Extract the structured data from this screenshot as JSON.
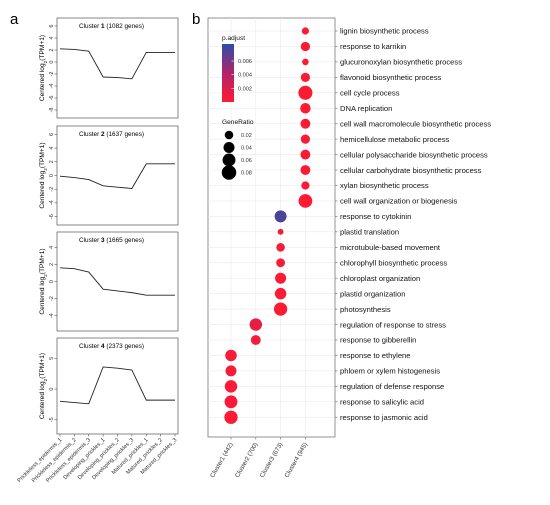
{
  "chart_data": [
    {
      "type": "line",
      "panel": "a",
      "cluster_name": "Cluster",
      "cluster_index": "1",
      "cluster_genes": "(1082 genes)",
      "ylabel": "Centered log2(TPM+1)",
      "ylabel_parts": {
        "pre": "Centered log",
        "sub": "2",
        "post": "(TPM+1)"
      },
      "yticks": [
        6,
        4,
        2,
        0,
        -2,
        -4,
        -6,
        -8
      ],
      "ylim": [
        -8.5,
        6.5
      ],
      "x": [
        "Prickleless_epidermis_1",
        "Prickleless_epidermis_2",
        "Prickleless_epidermis_3",
        "Developing_prickles_1",
        "Developing_prickles_2",
        "Developing_prickles_3",
        "Matured_prickles_1",
        "Matured_prickles_2",
        "Matured_prickles_3"
      ],
      "values": [
        2.2,
        2.1,
        1.8,
        -2.5,
        -2.6,
        -2.8,
        1.6,
        1.6,
        1.6
      ]
    },
    {
      "type": "line",
      "panel": "a",
      "cluster_name": "Cluster",
      "cluster_index": "2",
      "cluster_genes": "(1637 genes)",
      "ylabel": "Centered log2(TPM+1)",
      "ylabel_parts": {
        "pre": "Centered log",
        "sub": "2",
        "post": "(TPM+1)"
      },
      "yticks": [
        6,
        4,
        2,
        0,
        -2,
        -4,
        -6
      ],
      "ylim": [
        -6.5,
        6.5
      ],
      "x": [
        "Prickleless_epidermis_1",
        "Prickleless_epidermis_2",
        "Prickleless_epidermis_3",
        "Developing_prickles_1",
        "Developing_prickles_2",
        "Developing_prickles_3",
        "Matured_prickles_1",
        "Matured_prickles_2",
        "Matured_prickles_3"
      ],
      "values": [
        -0.1,
        -0.3,
        -0.6,
        -1.5,
        -1.7,
        -1.9,
        1.7,
        1.7,
        1.7
      ]
    },
    {
      "type": "line",
      "panel": "a",
      "cluster_name": "Cluster",
      "cluster_index": "3",
      "cluster_genes": "(1665 genes)",
      "ylabel": "Centered log2(TPM+1)",
      "ylabel_parts": {
        "pre": "Centered log",
        "sub": "2",
        "post": "(TPM+1)"
      },
      "yticks": [
        4,
        2,
        0,
        -2,
        -4
      ],
      "ylim": [
        -5.2,
        5.2
      ],
      "x": [
        "Prickleless_epidermis_1",
        "Prickleless_epidermis_2",
        "Prickleless_epidermis_3",
        "Developing_prickles_1",
        "Developing_prickles_2",
        "Developing_prickles_3",
        "Matured_prickles_1",
        "Matured_prickles_2",
        "Matured_prickles_3"
      ],
      "values": [
        1.6,
        1.5,
        1.1,
        -0.9,
        -1.1,
        -1.3,
        -1.6,
        -1.6,
        -1.6
      ]
    },
    {
      "type": "line",
      "panel": "a",
      "cluster_name": "Cluster",
      "cluster_index": "4",
      "cluster_genes": "(2373 genes)",
      "ylabel": "Centered log2(TPM+1)",
      "ylabel_parts": {
        "pre": "Centered log",
        "sub": "2",
        "post": "(TPM+1)"
      },
      "yticks": [
        5,
        0,
        -5
      ],
      "ylim": [
        -6.5,
        7.5
      ],
      "x_ticklabels": [
        "Prickleless_epidermis_1",
        "Prickleless_epidermis_2",
        "Prickleless_epidermis_3",
        "Developing_prickles_1",
        "Developing_prickles_2",
        "Developing_prickles_3",
        "Matured_prickles_1",
        "Matured_prickles_2",
        "Matured_prickles_3"
      ],
      "x": [
        "Prickleless_epidermis_1",
        "Prickleless_epidermis_2",
        "Prickleless_epidermis_3",
        "Developing_prickles_1",
        "Developing_prickles_2",
        "Developing_prickles_3",
        "Matured_prickles_1",
        "Matured_prickles_2",
        "Matured_prickles_3"
      ],
      "values": [
        -2.0,
        -2.2,
        -2.4,
        3.6,
        3.4,
        3.1,
        -1.8,
        -1.8,
        -1.8
      ]
    },
    {
      "type": "scatter",
      "panel": "b",
      "categories": [
        "Cluster1 (442)",
        "Cluster2 (700)",
        "Cluster3 (673)",
        "Cluster4 (945)"
      ],
      "terms": [
        "lignin biosynthetic process",
        "response to karrikin",
        "glucuronoxylan biosynthetic process",
        "flavonoid biosynthetic process",
        "cell cycle process",
        "DNA replication",
        "cell wall macromolecule biosynthetic process",
        "hemicellulose metabolic process",
        "cellular polysaccharide biosynthetic process",
        "cellular carbohydrate biosynthetic process",
        "xylan biosynthetic process",
        "cell wall organization or biogenesis",
        "response to cytokinin",
        "plastid translation",
        "microtubule-based movement",
        "chlorophyll biosynthetic process",
        "chloroplast organization",
        "plastid organization",
        "photosynthesis",
        "regulation of response to stress",
        "response to gibberellin",
        "response to ethylene",
        "phloem or xylem histogenesis",
        "regulation of defense response",
        "response to salicylic acid",
        "response to jasmonic acid"
      ],
      "points": [
        {
          "cluster": 3,
          "term": 0,
          "gene_ratio": 0.012,
          "p_adjust": 0.0001
        },
        {
          "cluster": 3,
          "term": 1,
          "gene_ratio": 0.025,
          "p_adjust": 0.0002
        },
        {
          "cluster": 3,
          "term": 2,
          "gene_ratio": 0.009,
          "p_adjust": 0.0003
        },
        {
          "cluster": 3,
          "term": 3,
          "gene_ratio": 0.025,
          "p_adjust": 0.0002
        },
        {
          "cluster": 3,
          "term": 4,
          "gene_ratio": 0.075,
          "p_adjust": 1e-05
        },
        {
          "cluster": 3,
          "term": 5,
          "gene_ratio": 0.035,
          "p_adjust": 2e-05
        },
        {
          "cluster": 3,
          "term": 6,
          "gene_ratio": 0.03,
          "p_adjust": 0.0002
        },
        {
          "cluster": 3,
          "term": 7,
          "gene_ratio": 0.025,
          "p_adjust": 0.0003
        },
        {
          "cluster": 3,
          "term": 8,
          "gene_ratio": 0.03,
          "p_adjust": 0.0002
        },
        {
          "cluster": 3,
          "term": 9,
          "gene_ratio": 0.03,
          "p_adjust": 0.0002
        },
        {
          "cluster": 3,
          "term": 10,
          "gene_ratio": 0.018,
          "p_adjust": 0.0003
        },
        {
          "cluster": 3,
          "term": 11,
          "gene_ratio": 0.07,
          "p_adjust": 2e-05
        },
        {
          "cluster": 2,
          "term": 12,
          "gene_ratio": 0.05,
          "p_adjust": 0.0075
        },
        {
          "cluster": 2,
          "term": 13,
          "gene_ratio": 0.006,
          "p_adjust": 0.0004
        },
        {
          "cluster": 2,
          "term": 14,
          "gene_ratio": 0.02,
          "p_adjust": 0.0005
        },
        {
          "cluster": 2,
          "term": 15,
          "gene_ratio": 0.022,
          "p_adjust": 0.0002
        },
        {
          "cluster": 2,
          "term": 16,
          "gene_ratio": 0.04,
          "p_adjust": 0.0001
        },
        {
          "cluster": 2,
          "term": 17,
          "gene_ratio": 0.045,
          "p_adjust": 0.0001
        },
        {
          "cluster": 2,
          "term": 18,
          "gene_ratio": 0.065,
          "p_adjust": 1e-05
        },
        {
          "cluster": 1,
          "term": 19,
          "gene_ratio": 0.055,
          "p_adjust": 0.0012
        },
        {
          "cluster": 1,
          "term": 20,
          "gene_ratio": 0.03,
          "p_adjust": 0.0006
        },
        {
          "cluster": 0,
          "term": 21,
          "gene_ratio": 0.045,
          "p_adjust": 0.0003
        },
        {
          "cluster": 0,
          "term": 22,
          "gene_ratio": 0.04,
          "p_adjust": 0.0004
        },
        {
          "cluster": 0,
          "term": 23,
          "gene_ratio": 0.055,
          "p_adjust": 0.0003
        },
        {
          "cluster": 0,
          "term": 24,
          "gene_ratio": 0.06,
          "p_adjust": 0.0002
        },
        {
          "cluster": 0,
          "term": 25,
          "gene_ratio": 0.065,
          "p_adjust": 0.0001
        }
      ],
      "color_legend": {
        "title": "p.adjust",
        "ticks": [
          "0.006",
          "0.004",
          "0.002"
        ],
        "tick_values": [
          0.006,
          0.004,
          0.002
        ],
        "range": [
          0.0,
          0.0085
        ],
        "low_color": "#ff1a33",
        "high_color": "#2c4ea8"
      },
      "size_legend": {
        "title": "GeneRatio",
        "ticks": [
          "0.02",
          "0.04",
          "0.06",
          "0.08"
        ],
        "tick_values": [
          0.02,
          0.04,
          0.06,
          0.08
        ]
      }
    }
  ],
  "panel_labels": {
    "a": "a",
    "b": "b"
  }
}
